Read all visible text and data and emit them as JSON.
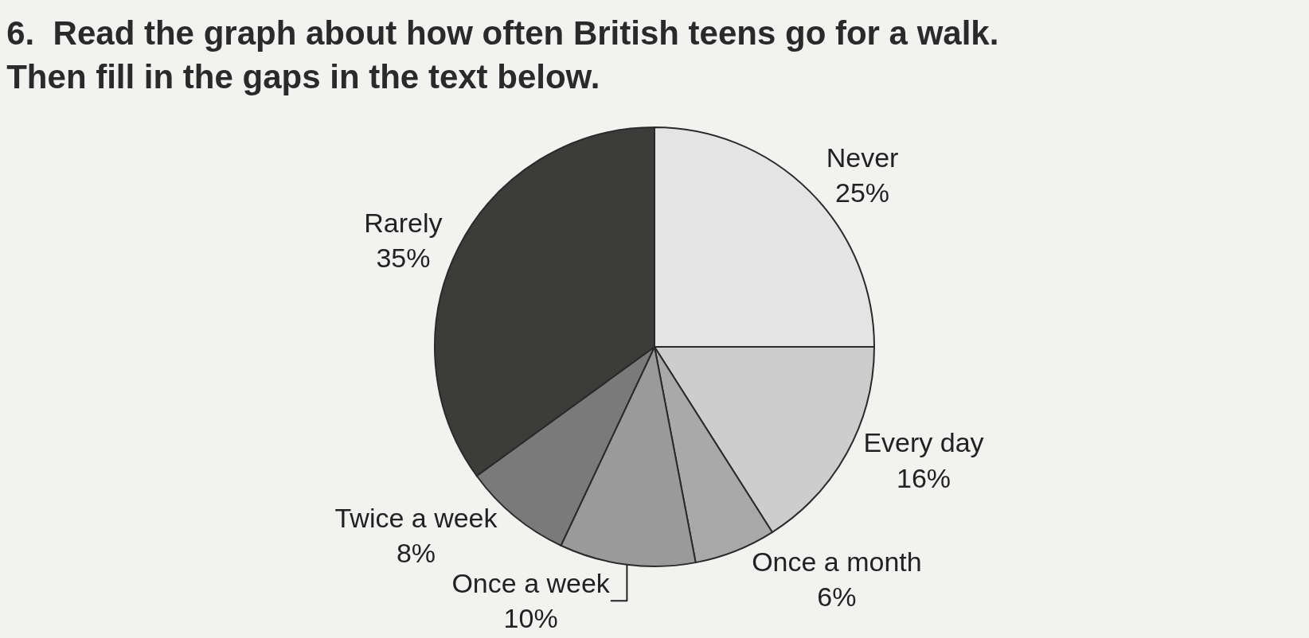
{
  "chart_data": {
    "type": "pie",
    "title": "6.  Read the graph about how often British teens go for a walk.\nThen fill in the gaps in the text below.",
    "categories": [
      "Never",
      "Every day",
      "Once a month",
      "Once a week",
      "Twice a week",
      "Rarely"
    ],
    "values": [
      25,
      16,
      6,
      10,
      8,
      35
    ],
    "value_labels": [
      "25%",
      "16%",
      "6%",
      "10%",
      "8%",
      "35%"
    ],
    "colors": [
      "#e4e4e4",
      "#cdcdcd",
      "#a9a9a9",
      "#9a9a9a",
      "#7a7a7a",
      "#3c3c3a"
    ],
    "legend": false
  }
}
